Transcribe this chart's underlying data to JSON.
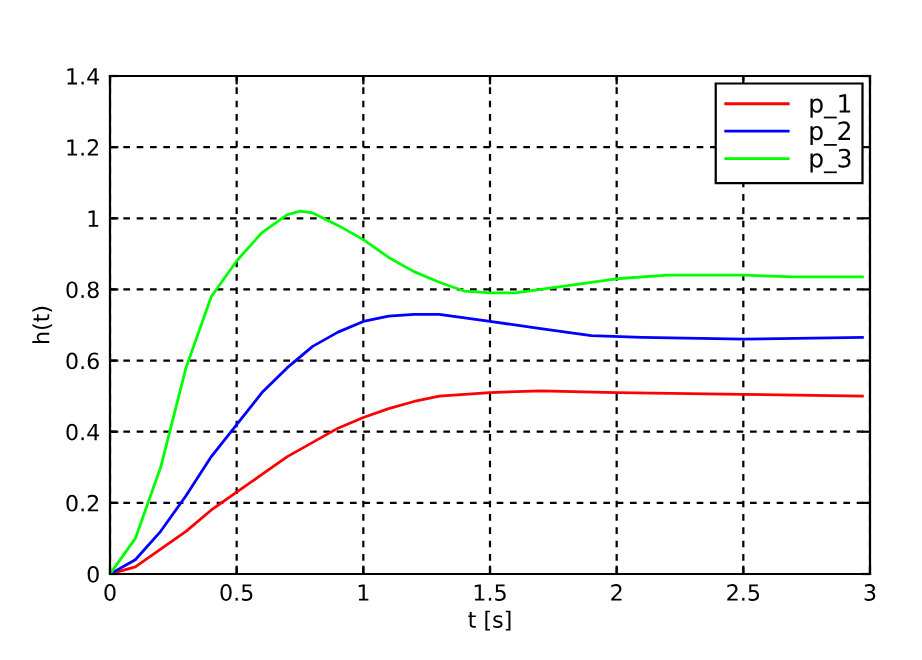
{
  "chart_data": {
    "type": "line",
    "xlabel": "t [s]",
    "ylabel": "h(t)",
    "xlim": [
      0,
      3
    ],
    "ylim": [
      0,
      1.4
    ],
    "xticks": [
      0,
      0.5,
      1,
      1.5,
      2,
      2.5,
      3
    ],
    "yticks": [
      0,
      0.2,
      0.4,
      0.6,
      0.8,
      1,
      1.2,
      1.4
    ],
    "grid": true,
    "legend": "top right",
    "line_style": "solid",
    "marker": "none",
    "series": [
      {
        "name": "p_1",
        "color": "#ff0000",
        "x": [
          0,
          0.1,
          0.2,
          0.3,
          0.4,
          0.5,
          0.6,
          0.7,
          0.8,
          0.9,
          1.0,
          1.1,
          1.2,
          1.3,
          1.4,
          1.5,
          1.7,
          2.0,
          2.5,
          2.97
        ],
        "values": [
          0,
          0.02,
          0.07,
          0.12,
          0.18,
          0.23,
          0.28,
          0.33,
          0.37,
          0.41,
          0.44,
          0.465,
          0.485,
          0.5,
          0.505,
          0.51,
          0.515,
          0.51,
          0.505,
          0.5
        ]
      },
      {
        "name": "p_2",
        "color": "#0000ff",
        "x": [
          0,
          0.1,
          0.2,
          0.3,
          0.4,
          0.5,
          0.6,
          0.7,
          0.8,
          0.9,
          1.0,
          1.1,
          1.2,
          1.3,
          1.4,
          1.5,
          1.7,
          1.9,
          2.1,
          2.5,
          2.97
        ],
        "values": [
          0,
          0.04,
          0.12,
          0.22,
          0.33,
          0.42,
          0.51,
          0.58,
          0.64,
          0.68,
          0.71,
          0.725,
          0.73,
          0.73,
          0.72,
          0.71,
          0.69,
          0.67,
          0.665,
          0.66,
          0.665
        ]
      },
      {
        "name": "p_3",
        "color": "#00ff00",
        "x": [
          0,
          0.1,
          0.2,
          0.3,
          0.4,
          0.5,
          0.6,
          0.7,
          0.75,
          0.8,
          0.9,
          1.0,
          1.1,
          1.2,
          1.3,
          1.4,
          1.5,
          1.6,
          1.8,
          2.0,
          2.2,
          2.5,
          2.7,
          2.97
        ],
        "values": [
          0,
          0.1,
          0.3,
          0.58,
          0.78,
          0.88,
          0.96,
          1.01,
          1.02,
          1.015,
          0.98,
          0.94,
          0.89,
          0.85,
          0.82,
          0.795,
          0.79,
          0.79,
          0.81,
          0.83,
          0.84,
          0.84,
          0.835,
          0.835
        ]
      }
    ]
  }
}
